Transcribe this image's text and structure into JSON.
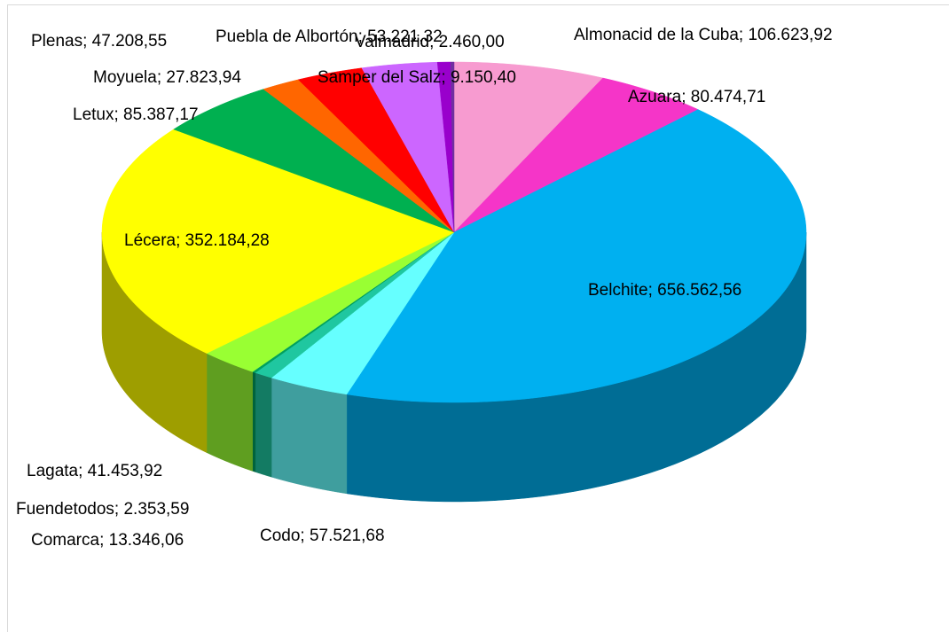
{
  "chart_data": {
    "type": "pie",
    "values": [
      106623.92,
      80474.71,
      656562.56,
      57521.68,
      13346.06,
      2353.59,
      41453.92,
      352184.28,
      85387.17,
      27823.94,
      47208.55,
      53221.32,
      9150.4,
      2460.0
    ],
    "value_labels": [
      "Almonacid de la Cuba; 106.623,92",
      "Azuara; 80.474,71",
      "Belchite; 656.562,56",
      "Codo; 57.521,68",
      "Comarca; 13.346,06",
      "Fuendetodos; 2.353,59",
      "Lagata; 41.453,92",
      "Lécera; 352.184,28",
      "Letux; 85.387,17",
      "Moyuela; 27.823,94",
      "Plenas; 47.208,55",
      "Puebla de Albortón; 53.221,32",
      "Samper del Salz; 9.150,40",
      "Valmadrid; 2.460,00"
    ],
    "colors": [
      "#f79bd0",
      "#f535c8",
      "#00b0f0",
      "#66ffff",
      "#1fc7a0",
      "#00a060",
      "#99ff33",
      "#ffff00",
      "#00b050",
      "#ff6600",
      "#ff0000",
      "#cc66ff",
      "#9900cc",
      "#7030a0"
    ]
  }
}
